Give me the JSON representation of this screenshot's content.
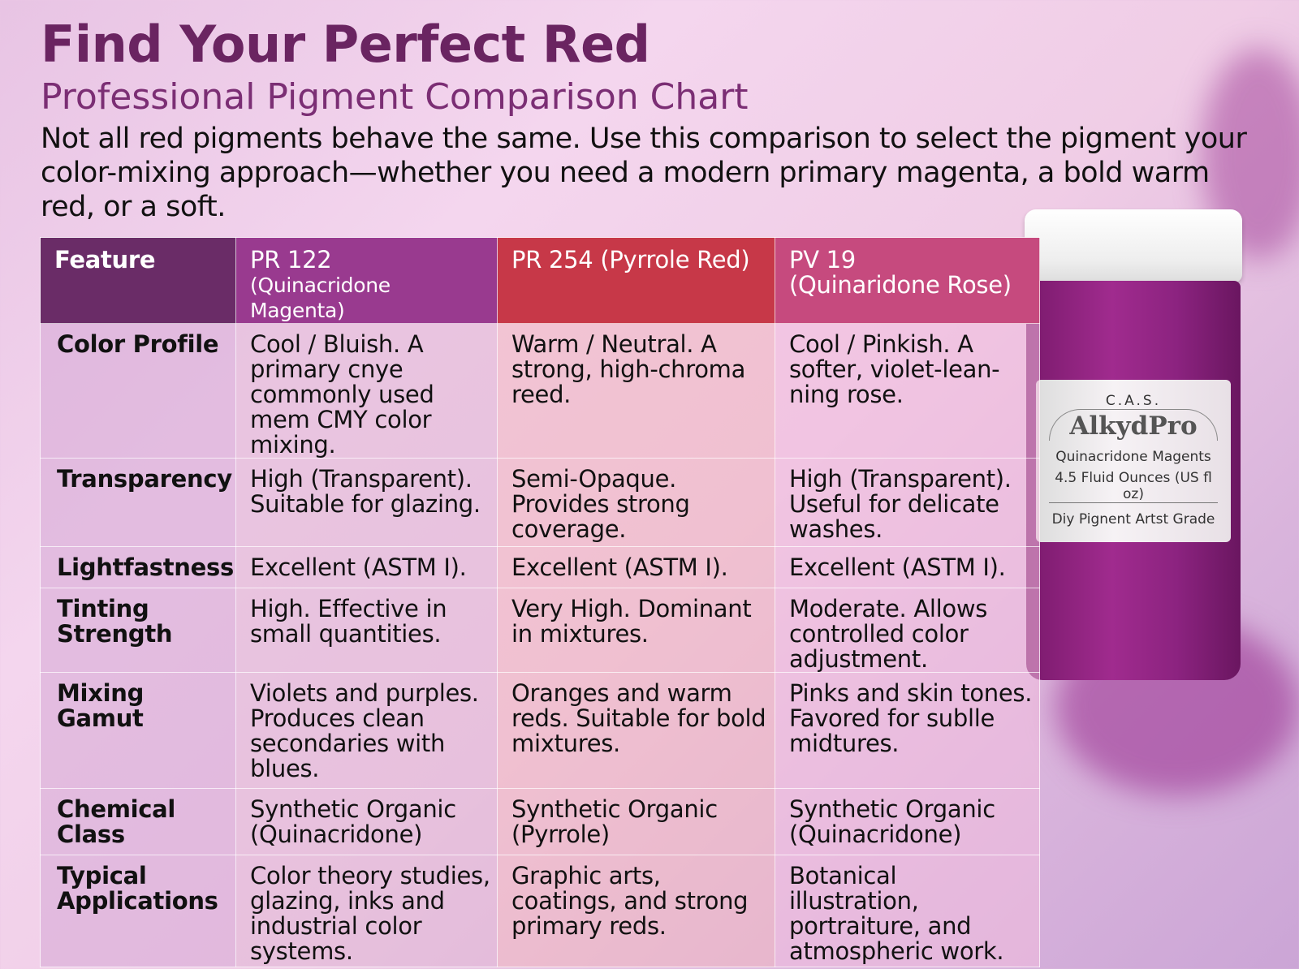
{
  "header": {
    "title": "Find Your Perfect Red",
    "subtitle": "Professional Pigment Comparison Chart",
    "intro": "Not all red pigments behave the same. Use this comparison to select the pigment your color-mixing approach—whether you need a modern primary magenta, a bold warm red, or a soft."
  },
  "table": {
    "headers": [
      {
        "label": "Feature",
        "sub": ""
      },
      {
        "label": "PR 122",
        "sub": "(Quinacridone Magenta)"
      },
      {
        "label": "PR 254 (Pyrrole Red)",
        "sub": ""
      },
      {
        "label": "PV 19",
        "sub": "(Quinaridone Rose)"
      }
    ],
    "rows": [
      {
        "feature": "Color Profile",
        "cells": [
          "Cool / Bluish. A primary cnye commonly used mem CMY color mixing.",
          "Warm / Neutral. A strong, high-chroma reed.",
          "Cool / Pinkish. A softer, violet-lean-ning rose."
        ]
      },
      {
        "feature": "Transparency",
        "cells": [
          "High (Transparent). Suitable for glazing.",
          "Semi-Opaque. Provides strong coverage.",
          "High (Transparent). Useful for delicate washes."
        ]
      },
      {
        "feature": "Lightfastness",
        "cells": [
          "Excellent (ASTM I).",
          "Excellent (ASTM I).",
          "Excellent (ASTM I)."
        ]
      },
      {
        "feature": "Tinting Strength",
        "cells": [
          "High. Effective in  small quantities.",
          "Very High. Dominant in mixtures.",
          "Moderate. Allows controlled color adjustment."
        ]
      },
      {
        "feature": "Mixing Gamut",
        "cells": [
          "Violets and purples. Produces clean secondaries with blues.",
          "Oranges and warm reds. Suitable for bold mixtures.",
          "Pinks and skin tones. Favored for sublle midtures."
        ]
      },
      {
        "feature": "Chemical Class",
        "cells": [
          "Synthetic Organic (Quinacridone)",
          "Synthetic Organic (Pyrrole)",
          "Synthetic Organic (Quinacridone)"
        ]
      },
      {
        "feature": "Typical Applications",
        "cells": [
          "Color theory studies, glazing, inks and industrial color systems.",
          "Graphic arts, coatings, and strong primary reds.",
          "Botanical illustration, portraiture, and atmospheric work."
        ]
      }
    ]
  },
  "product": {
    "maker": "C.A.S.",
    "brand": "AlkydPro",
    "name": "Quinacridone Magents",
    "volume": "4.5 Fluid Ounces (US fl oz)",
    "grade": "Diy Pignent Artst Grade"
  }
}
